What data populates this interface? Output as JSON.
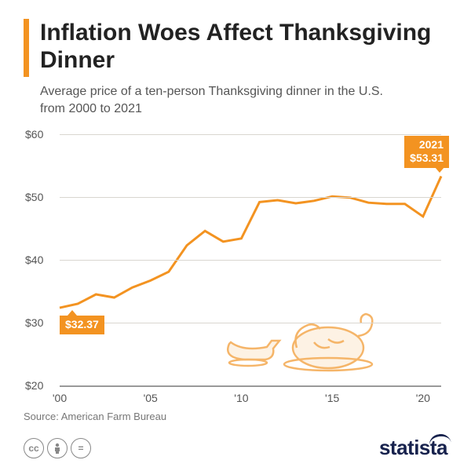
{
  "title": "Inflation Woes Affect Thanksgiving Dinner",
  "subtitle": "Average price of a ten-person Thanksgiving dinner in the U.S. from 2000 to 2021",
  "source": "Source: American Farm Bureau",
  "brand": "statista",
  "accent_color": "#f39321",
  "line_color": "#f39321",
  "callout_bg": "#f39321",
  "grid_color": "#d9d6d0",
  "xlim": [
    2000,
    2021
  ],
  "ylim": [
    20,
    60
  ],
  "y_ticks": [
    20,
    30,
    40,
    50,
    60
  ],
  "y_tick_labels": [
    "$20",
    "$30",
    "$40",
    "$50",
    "$60"
  ],
  "x_ticks": [
    2000,
    2005,
    2010,
    2015,
    2020
  ],
  "x_tick_labels": [
    "'00",
    "'05",
    "'10",
    "'15",
    "'20"
  ],
  "series": {
    "years": [
      2000,
      2001,
      2002,
      2003,
      2004,
      2005,
      2006,
      2007,
      2008,
      2009,
      2010,
      2011,
      2012,
      2013,
      2014,
      2015,
      2016,
      2017,
      2018,
      2019,
      2020,
      2021
    ],
    "values": [
      32.37,
      33.0,
      34.5,
      34.0,
      35.6,
      36.7,
      38.1,
      42.3,
      44.6,
      42.9,
      43.4,
      49.2,
      49.5,
      49.0,
      49.4,
      50.1,
      49.9,
      49.1,
      48.9,
      48.9,
      46.9,
      53.31
    ]
  },
  "callouts": {
    "start": {
      "label": "$32.37",
      "value": 32.37,
      "year": 2000
    },
    "end": {
      "label_year": "2021",
      "label_value": "$53.31",
      "value": 53.31,
      "year": 2021
    }
  }
}
